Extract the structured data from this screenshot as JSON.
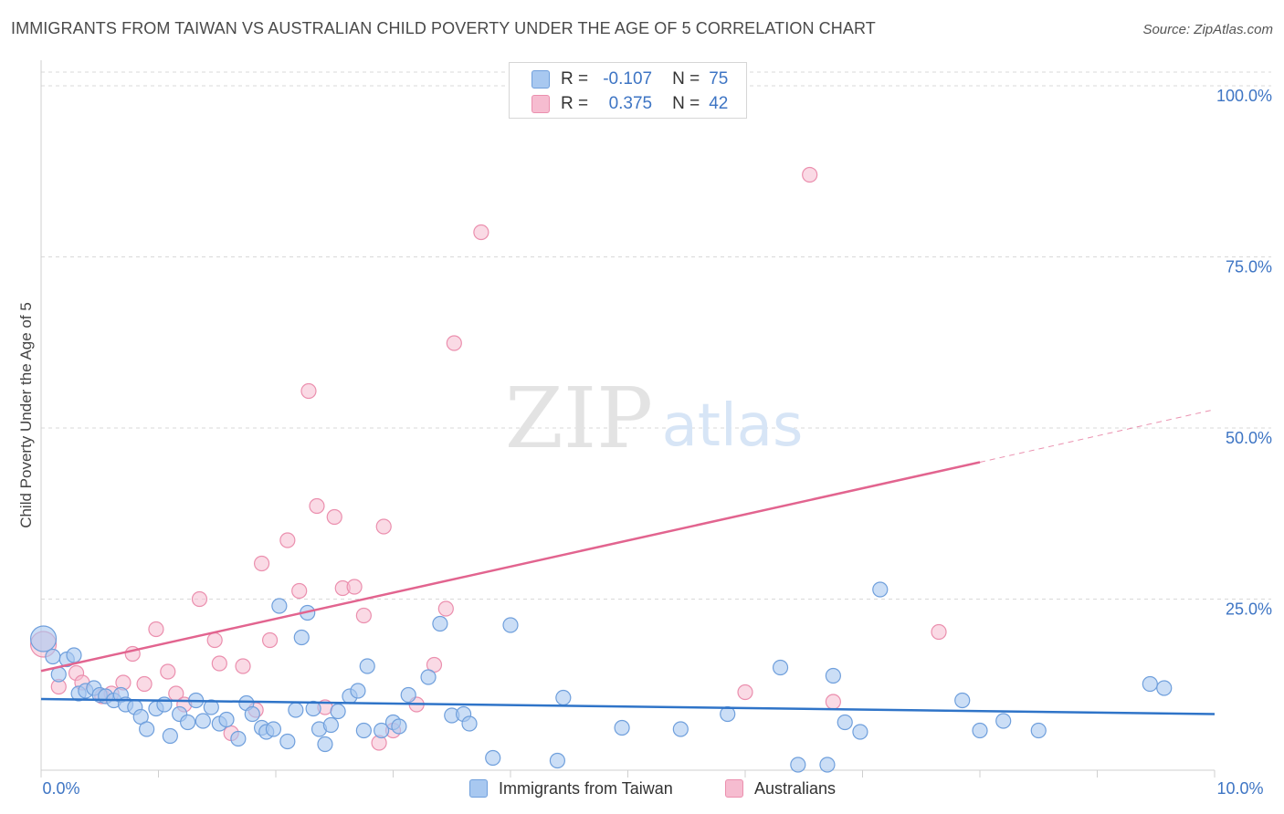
{
  "title": "IMMIGRANTS FROM TAIWAN VS AUSTRALIAN CHILD POVERTY UNDER THE AGE OF 5 CORRELATION CHART",
  "source": "Source: ZipAtlas.com",
  "watermark": {
    "zip": "ZIP",
    "atlas": "atlas"
  },
  "colors": {
    "blue_fill": "#a8c8f0",
    "blue_stroke": "#6f9fdc",
    "blue_line": "#2f74c8",
    "pink_fill": "#f6bcd0",
    "pink_stroke": "#eb8fae",
    "pink_line": "#e2648f",
    "axis_label": "#3e75c4",
    "grid": "#d9d9d9"
  },
  "legend": {
    "rows": [
      {
        "r_label": "R =",
        "r_value": "-0.107",
        "n_label": "N =",
        "n_value": "75"
      },
      {
        "r_label": "R =",
        "r_value": "0.375",
        "n_label": "N =",
        "n_value": "42"
      }
    ]
  },
  "bottom_legend": {
    "series1": "Immigrants from Taiwan",
    "series2": "Australians"
  },
  "chart_data": {
    "type": "scatter",
    "title": "IMMIGRANTS FROM TAIWAN VS AUSTRALIAN CHILD POVERTY UNDER THE AGE OF 5 CORRELATION CHART",
    "xlabel": "",
    "ylabel": "Child Poverty Under the Age of 5",
    "xlim": [
      0,
      10
    ],
    "ylim": [
      0,
      102
    ],
    "x_tick_labels": [
      "0.0%",
      "10.0%"
    ],
    "y_ticks": [
      25,
      50,
      75,
      100
    ],
    "y_tick_labels": [
      "25.0%",
      "50.0%",
      "75.0%",
      "100.0%"
    ],
    "grid": true,
    "series": [
      {
        "name": "Immigrants from Taiwan",
        "R": -0.107,
        "N": 75,
        "trend": {
          "x": [
            0,
            10
          ],
          "y": [
            10.4,
            8.2
          ]
        },
        "points": [
          [
            0.02,
            19.2
          ],
          [
            0.1,
            16.6
          ],
          [
            0.15,
            14.0
          ],
          [
            0.22,
            16.2
          ],
          [
            0.28,
            16.8
          ],
          [
            0.32,
            11.2
          ],
          [
            0.38,
            11.6
          ],
          [
            0.45,
            12.0
          ],
          [
            0.5,
            11.0
          ],
          [
            0.55,
            10.8
          ],
          [
            0.62,
            10.2
          ],
          [
            0.68,
            11.0
          ],
          [
            0.72,
            9.6
          ],
          [
            0.8,
            9.2
          ],
          [
            0.85,
            7.8
          ],
          [
            0.9,
            6.0
          ],
          [
            0.98,
            9.0
          ],
          [
            1.05,
            9.6
          ],
          [
            1.1,
            5.0
          ],
          [
            1.18,
            8.2
          ],
          [
            1.25,
            7.0
          ],
          [
            1.32,
            10.2
          ],
          [
            1.38,
            7.2
          ],
          [
            1.45,
            9.2
          ],
          [
            1.52,
            6.8
          ],
          [
            1.58,
            7.4
          ],
          [
            1.68,
            4.6
          ],
          [
            1.75,
            9.8
          ],
          [
            1.8,
            8.2
          ],
          [
            1.88,
            6.2
          ],
          [
            1.92,
            5.6
          ],
          [
            1.98,
            6.0
          ],
          [
            2.03,
            24.0
          ],
          [
            2.1,
            4.2
          ],
          [
            2.17,
            8.8
          ],
          [
            2.22,
            19.4
          ],
          [
            2.27,
            23.0
          ],
          [
            2.32,
            9.0
          ],
          [
            2.37,
            6.0
          ],
          [
            2.42,
            3.8
          ],
          [
            2.47,
            6.6
          ],
          [
            2.53,
            8.6
          ],
          [
            2.63,
            10.8
          ],
          [
            2.7,
            11.6
          ],
          [
            2.75,
            5.8
          ],
          [
            2.78,
            15.2
          ],
          [
            2.9,
            5.8
          ],
          [
            3.0,
            7.0
          ],
          [
            3.05,
            6.4
          ],
          [
            3.13,
            11.0
          ],
          [
            3.3,
            13.6
          ],
          [
            3.4,
            21.4
          ],
          [
            3.5,
            8.0
          ],
          [
            3.6,
            8.2
          ],
          [
            3.65,
            6.8
          ],
          [
            3.85,
            1.8
          ],
          [
            4.0,
            21.2
          ],
          [
            4.4,
            1.4
          ],
          [
            4.45,
            10.6
          ],
          [
            4.95,
            6.2
          ],
          [
            5.45,
            6.0
          ],
          [
            5.85,
            8.2
          ],
          [
            6.3,
            15.0
          ],
          [
            6.45,
            0.8
          ],
          [
            6.7,
            0.8
          ],
          [
            6.75,
            13.8
          ],
          [
            6.85,
            7.0
          ],
          [
            6.98,
            5.6
          ],
          [
            7.15,
            26.4
          ],
          [
            7.85,
            10.2
          ],
          [
            8.0,
            5.8
          ],
          [
            8.2,
            7.2
          ],
          [
            8.5,
            5.8
          ],
          [
            9.45,
            12.6
          ],
          [
            9.57,
            12.0
          ]
        ]
      },
      {
        "name": "Australians",
        "R": 0.375,
        "N": 42,
        "trend": {
          "x": [
            0,
            8.0
          ],
          "y": [
            14.5,
            45.0
          ]
        },
        "trend_dashed": {
          "x": [
            8.0,
            10.0
          ],
          "y": [
            45.0,
            52.7
          ]
        },
        "points": [
          [
            0.02,
            18.4
          ],
          [
            0.15,
            12.2
          ],
          [
            0.3,
            14.2
          ],
          [
            0.35,
            12.8
          ],
          [
            0.52,
            10.8
          ],
          [
            0.6,
            11.2
          ],
          [
            0.7,
            12.8
          ],
          [
            0.78,
            17.0
          ],
          [
            0.88,
            12.6
          ],
          [
            0.98,
            20.6
          ],
          [
            1.08,
            14.4
          ],
          [
            1.15,
            11.2
          ],
          [
            1.22,
            9.6
          ],
          [
            1.35,
            25.0
          ],
          [
            1.48,
            19.0
          ],
          [
            1.52,
            15.6
          ],
          [
            1.62,
            5.4
          ],
          [
            1.72,
            15.2
          ],
          [
            1.83,
            8.8
          ],
          [
            1.88,
            30.2
          ],
          [
            1.95,
            19.0
          ],
          [
            2.1,
            33.6
          ],
          [
            2.2,
            26.2
          ],
          [
            2.28,
            55.4
          ],
          [
            2.35,
            38.6
          ],
          [
            2.42,
            9.2
          ],
          [
            2.5,
            37.0
          ],
          [
            2.57,
            26.6
          ],
          [
            2.67,
            26.8
          ],
          [
            2.75,
            22.6
          ],
          [
            2.88,
            4.0
          ],
          [
            2.92,
            35.6
          ],
          [
            3.0,
            5.8
          ],
          [
            3.2,
            9.6
          ],
          [
            3.35,
            15.4
          ],
          [
            3.45,
            23.6
          ],
          [
            3.52,
            62.4
          ],
          [
            3.75,
            78.6
          ],
          [
            6.0,
            11.4
          ],
          [
            6.55,
            87.0
          ],
          [
            6.75,
            10.0
          ],
          [
            7.65,
            20.2
          ]
        ]
      }
    ]
  }
}
